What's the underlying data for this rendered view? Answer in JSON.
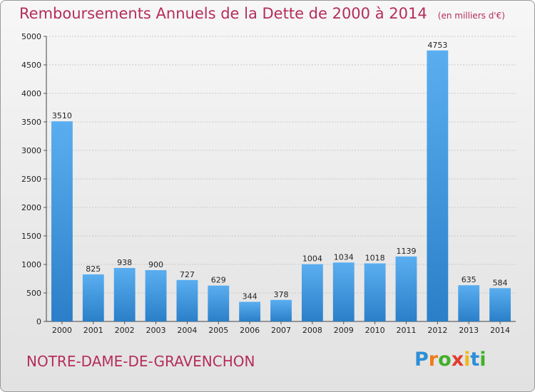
{
  "chart_data": {
    "type": "bar",
    "title": "Remboursements Annuels de la Dette de 2000 à 2014",
    "unit_note": "(en milliers d'€)",
    "categories": [
      "2000",
      "2001",
      "2002",
      "2003",
      "2004",
      "2005",
      "2006",
      "2007",
      "2008",
      "2009",
      "2010",
      "2011",
      "2012",
      "2013",
      "2014"
    ],
    "values": [
      3510,
      825,
      938,
      900,
      727,
      629,
      344,
      378,
      1004,
      1034,
      1018,
      1139,
      4753,
      635,
      584
    ],
    "ylim": [
      0,
      5000
    ],
    "yticks": [
      0,
      500,
      1000,
      1500,
      2000,
      2500,
      3000,
      3500,
      4000,
      4500,
      5000
    ],
    "grid": true,
    "bar_color_top": "#5aaef0",
    "bar_color_bottom": "#2a7fc8"
  },
  "footer": {
    "city": "NOTRE-DAME-DE-GRAVENCHON"
  },
  "logo": {
    "letters": [
      {
        "char": "P",
        "color": "#2d8fd6"
      },
      {
        "char": "r",
        "color": "#f07a1a"
      },
      {
        "char": "o",
        "color": "#43b02a"
      },
      {
        "char": "x",
        "color": "#e23b2e"
      },
      {
        "char": "i",
        "color": "#f2b71c"
      },
      {
        "char": "t",
        "color": "#2d8fd6"
      },
      {
        "char": "i",
        "color": "#43b02a"
      }
    ]
  }
}
